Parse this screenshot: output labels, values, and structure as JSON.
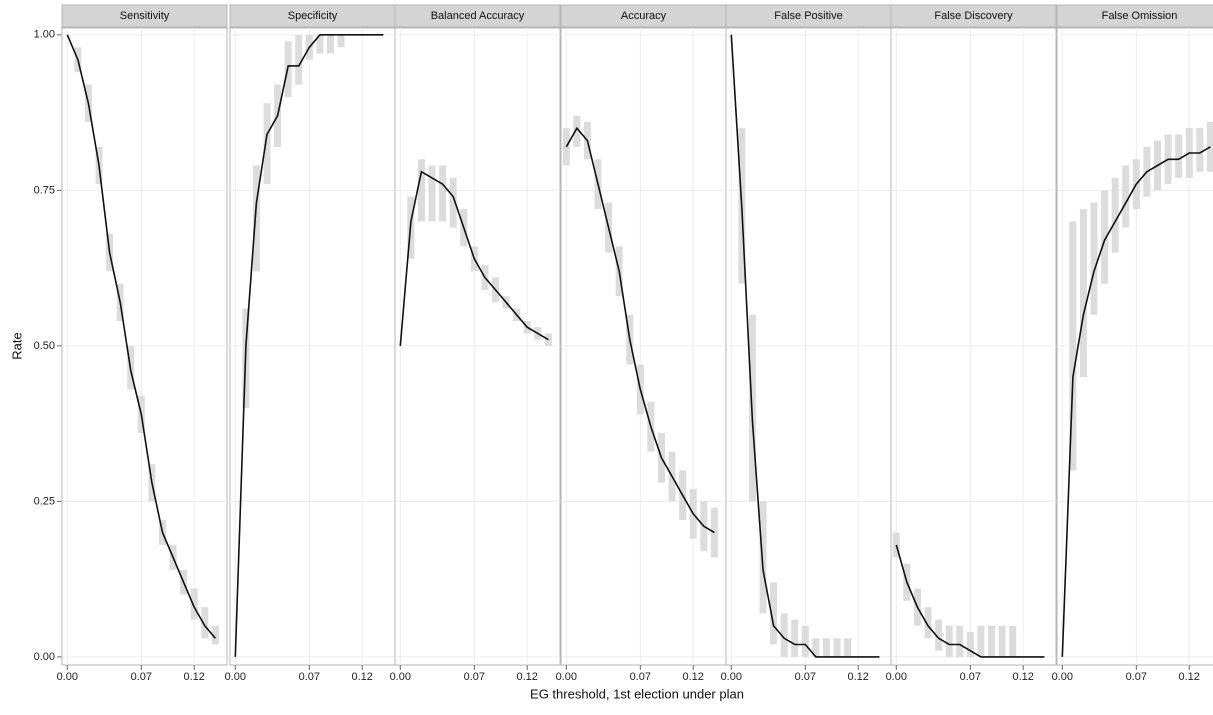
{
  "xlabel": "EG threshold, 1st election under plan",
  "ylabel": "Rate",
  "ylim": [
    -0.013,
    1.011
  ],
  "yticks": [
    {
      "value": 0,
      "label": "0.00"
    },
    0.25,
    {
      "value": 0.5,
      "label": "0.50"
    },
    0.75,
    {
      "value": 1,
      "label": "1.00"
    }
  ],
  "chart_data": [
    {
      "type": "line",
      "title": "Sensitivity",
      "color": "#111111",
      "band_color": "#dcdcdc",
      "x": [
        0,
        0.01,
        0.02,
        0.03,
        0.04,
        0.05,
        0.06,
        0.07,
        0.08,
        0.09,
        0.1,
        0.11,
        0.12,
        0.13,
        0.14
      ],
      "values": [
        1.0,
        0.96,
        0.89,
        0.79,
        0.65,
        0.57,
        0.46,
        0.39,
        0.28,
        0.2,
        0.16,
        0.12,
        0.08,
        0.05,
        0.03
      ],
      "lower": [
        1.0,
        0.94,
        0.86,
        0.76,
        0.62,
        0.54,
        0.43,
        0.36,
        0.25,
        0.18,
        0.14,
        0.1,
        0.06,
        0.03,
        0.02
      ],
      "upper": [
        1.0,
        0.98,
        0.92,
        0.82,
        0.68,
        0.6,
        0.5,
        0.42,
        0.31,
        0.22,
        0.18,
        0.14,
        0.11,
        0.08,
        0.05
      ],
      "xlim": [
        -0.005,
        0.151
      ],
      "xticks": [
        {
          "value": 0,
          "label": "0.00"
        },
        0.07,
        0.12
      ]
    },
    {
      "type": "line",
      "title": "Specificity",
      "color": "#111111",
      "band_color": "#dcdcdc",
      "x": [
        0,
        0.01,
        0.02,
        0.03,
        0.04,
        0.05,
        0.06,
        0.07,
        0.08,
        0.09,
        0.1,
        0.11,
        0.12,
        0.13,
        0.14
      ],
      "values": [
        0,
        0.5,
        0.73,
        0.84,
        0.87,
        0.95,
        0.95,
        0.98,
        1,
        1,
        1,
        1,
        1,
        1,
        1
      ],
      "lower": [
        0,
        0.4,
        0.62,
        0.76,
        0.82,
        0.9,
        0.92,
        0.96,
        0.97,
        0.97,
        0.98,
        1,
        1,
        1,
        1
      ],
      "upper": [
        0,
        0.56,
        0.79,
        0.89,
        0.92,
        0.99,
        1,
        1,
        1,
        1,
        1,
        1,
        1,
        1,
        1
      ],
      "xlim": [
        -0.005,
        0.151
      ],
      "xticks": [
        {
          "value": 0,
          "label": "0.00"
        },
        0.07,
        0.12
      ]
    },
    {
      "type": "line",
      "title": "Balanced Accuracy",
      "color": "#111111",
      "band_color": "#dcdcdc",
      "x": [
        0,
        0.01,
        0.02,
        0.03,
        0.04,
        0.05,
        0.06,
        0.07,
        0.08,
        0.09,
        0.1,
        0.11,
        0.12,
        0.13,
        0.14
      ],
      "values": [
        0.5,
        0.7,
        0.78,
        0.77,
        0.76,
        0.74,
        0.69,
        0.64,
        0.61,
        0.59,
        0.57,
        0.55,
        0.53,
        0.52,
        0.51
      ],
      "lower": [
        0.5,
        0.64,
        0.7,
        0.7,
        0.7,
        0.69,
        0.66,
        0.62,
        0.59,
        0.57,
        0.56,
        0.54,
        0.52,
        0.51,
        0.5
      ],
      "upper": [
        0.5,
        0.74,
        0.8,
        0.79,
        0.79,
        0.77,
        0.72,
        0.66,
        0.63,
        0.61,
        0.58,
        0.56,
        0.54,
        0.53,
        0.52
      ],
      "xlim": [
        -0.005,
        0.151
      ],
      "xticks": [
        {
          "value": 0,
          "label": "0.00"
        },
        0.07,
        0.12
      ]
    },
    {
      "type": "line",
      "title": "Accuracy",
      "color": "#111111",
      "band_color": "#dcdcdc",
      "x": [
        0,
        0.01,
        0.02,
        0.03,
        0.04,
        0.05,
        0.06,
        0.07,
        0.08,
        0.09,
        0.1,
        0.11,
        0.12,
        0.13,
        0.14
      ],
      "values": [
        0.82,
        0.85,
        0.83,
        0.76,
        0.69,
        0.62,
        0.51,
        0.43,
        0.37,
        0.32,
        0.29,
        0.26,
        0.23,
        0.21,
        0.2
      ],
      "lower": [
        0.79,
        0.82,
        0.8,
        0.72,
        0.65,
        0.58,
        0.47,
        0.39,
        0.33,
        0.28,
        0.25,
        0.22,
        0.19,
        0.17,
        0.16
      ],
      "upper": [
        0.85,
        0.87,
        0.86,
        0.8,
        0.73,
        0.66,
        0.55,
        0.47,
        0.41,
        0.36,
        0.33,
        0.3,
        0.27,
        0.25,
        0.24
      ],
      "xlim": [
        -0.005,
        0.151
      ],
      "xticks": [
        {
          "value": 0,
          "label": "0.00"
        },
        0.07,
        0.12
      ]
    },
    {
      "type": "line",
      "title": "False Positive",
      "color": "#111111",
      "band_color": "#dcdcdc",
      "x": [
        0,
        0.01,
        0.02,
        0.03,
        0.04,
        0.05,
        0.06,
        0.07,
        0.08,
        0.09,
        0.1,
        0.11,
        0.12,
        0.13,
        0.14
      ],
      "values": [
        1.0,
        0.72,
        0.38,
        0.14,
        0.05,
        0.03,
        0.02,
        0.02,
        0,
        0,
        0,
        0,
        0,
        0,
        0
      ],
      "lower": [
        1.0,
        0.6,
        0.25,
        0.07,
        0.02,
        0,
        0,
        0,
        0,
        0,
        0,
        0,
        0,
        0,
        0
      ],
      "upper": [
        1.0,
        0.85,
        0.55,
        0.25,
        0.12,
        0.07,
        0.06,
        0.05,
        0.03,
        0.03,
        0.03,
        0.03,
        0,
        0,
        0
      ],
      "xlim": [
        -0.005,
        0.151
      ],
      "xticks": [
        {
          "value": 0,
          "label": "0.00"
        },
        0.07,
        0.12
      ]
    },
    {
      "type": "line",
      "title": "False Discovery",
      "color": "#111111",
      "band_color": "#dcdcdc",
      "x": [
        0,
        0.01,
        0.02,
        0.03,
        0.04,
        0.05,
        0.06,
        0.07,
        0.08,
        0.09,
        0.1,
        0.11,
        0.12,
        0.13,
        0.14
      ],
      "values": [
        0.18,
        0.12,
        0.08,
        0.05,
        0.03,
        0.02,
        0.02,
        0.01,
        0,
        0,
        0,
        0,
        0,
        0,
        0
      ],
      "lower": [
        0.16,
        0.09,
        0.05,
        0.03,
        0.01,
        0,
        0,
        0,
        0,
        0,
        0,
        0,
        0,
        0,
        0
      ],
      "upper": [
        0.2,
        0.15,
        0.11,
        0.08,
        0.06,
        0.05,
        0.05,
        0.04,
        0.05,
        0.05,
        0.05,
        0.05,
        0,
        0,
        0
      ],
      "xlim": [
        -0.005,
        0.151
      ],
      "xticks": [
        {
          "value": 0,
          "label": "0.00"
        },
        0.07,
        0.12
      ]
    },
    {
      "type": "line",
      "title": "False Omission",
      "color": "#111111",
      "band_color": "#dcdcdc",
      "x": [
        0,
        0.01,
        0.02,
        0.03,
        0.04,
        0.05,
        0.06,
        0.07,
        0.08,
        0.09,
        0.1,
        0.11,
        0.12,
        0.13,
        0.14
      ],
      "values": [
        0,
        0.45,
        0.55,
        0.62,
        0.67,
        0.7,
        0.73,
        0.76,
        0.78,
        0.79,
        0.8,
        0.8,
        0.81,
        0.81,
        0.82
      ],
      "lower": [
        0,
        0.3,
        0.45,
        0.55,
        0.6,
        0.65,
        0.69,
        0.72,
        0.74,
        0.75,
        0.76,
        0.77,
        0.77,
        0.78,
        0.78
      ],
      "upper": [
        0,
        0.7,
        0.72,
        0.73,
        0.75,
        0.77,
        0.79,
        0.8,
        0.82,
        0.83,
        0.84,
        0.84,
        0.85,
        0.85,
        0.86
      ],
      "xlim": [
        -0.005,
        0.151
      ],
      "xticks": [
        {
          "value": 0,
          "label": "0.00"
        },
        0.07,
        0.12
      ]
    }
  ]
}
